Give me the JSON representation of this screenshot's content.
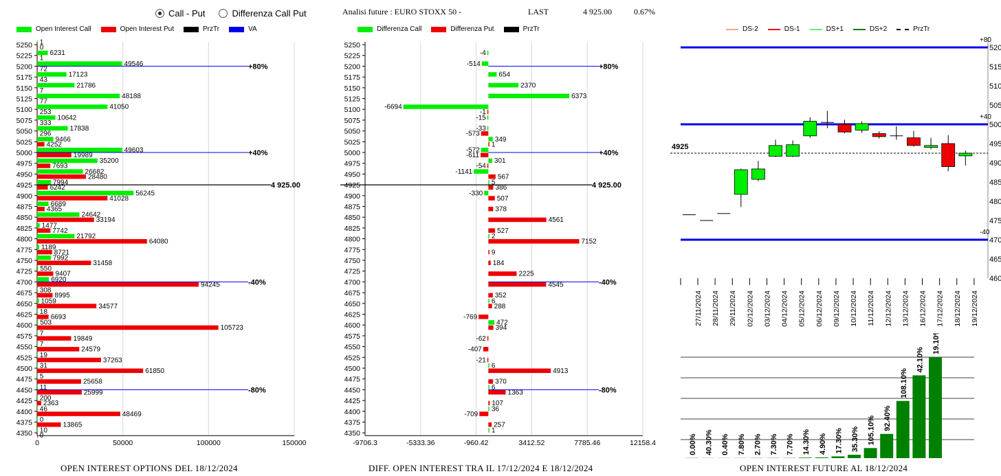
{
  "controls": {
    "radio_call_put": "Call - Put",
    "radio_diff": "Differenza Call Put",
    "selected": "call_put"
  },
  "header": {
    "analysis_label": "Analisi future : EURO STOXX 50 -",
    "last_label": "LAST",
    "last_value": "4 925.00",
    "change": "0.67%"
  },
  "colors": {
    "call": "#00ee00",
    "put": "#ee0000",
    "przTr": "#000000",
    "va": "#0000ee",
    "dark_green": "#008000"
  },
  "chart_data": [
    {
      "id": "oi",
      "type": "bar",
      "orientation": "horizontal",
      "title": "OPEN INTEREST OPTIONS DEL 18/12/2024",
      "legend": [
        "Open Interest Call",
        "Open Interest Put",
        "PrzTr",
        "VA"
      ],
      "xlim": [
        0,
        150000
      ],
      "xticks": [
        "0",
        "50000",
        "100000",
        "150000"
      ],
      "strikes": [
        "5250",
        "5225",
        "5200",
        "5175",
        "5150",
        "5125",
        "5100",
        "5075",
        "5050",
        "5025",
        "5000",
        "4975",
        "4950",
        "4925",
        "4900",
        "4875",
        "4850",
        "4825",
        "4800",
        "4775",
        "4750",
        "4725",
        "4700",
        "4675",
        "4650",
        "4625",
        "4600",
        "4575",
        "4550",
        "4525",
        "4500",
        "4475",
        "4450",
        "4425",
        "4400",
        "4375",
        "4350"
      ],
      "series": [
        {
          "name": "Open Interest Call",
          "values": [
            1,
            6231,
            49546,
            17123,
            21786,
            48188,
            41050,
            10642,
            17838,
            9466,
            49603,
            35200,
            26682,
            7994,
            56245,
            6689,
            24642,
            1477,
            21792,
            1189,
            7992,
            550,
            6920,
            308,
            1059,
            18,
            503,
            7,
            7,
            19,
            31,
            5,
            11,
            200,
            46,
            0,
            10
          ]
        },
        {
          "name": "Open Interest Put",
          "values": [
            0,
            1,
            72,
            43,
            7,
            77,
            253,
            333,
            296,
            4252,
            19989,
            7693,
            28480,
            6242,
            41028,
            4365,
            33194,
            7742,
            64080,
            8721,
            31458,
            9407,
            94245,
            8995,
            34577,
            6693,
            105723,
            19849,
            24579,
            37263,
            61850,
            25658,
            25999,
            2363,
            48469,
            13865,
            0
          ]
        }
      ],
      "przTr": {
        "strike": "4925",
        "label": "4 925.00"
      },
      "va_lines": [
        {
          "strike": "5200",
          "label": "+80%"
        },
        {
          "strike": "5000",
          "label": "+40%"
        },
        {
          "strike": "4700",
          "label": "-40%"
        },
        {
          "strike": "4450",
          "label": "-80%"
        }
      ]
    },
    {
      "id": "diff",
      "type": "bar",
      "orientation": "horizontal",
      "title": "DIFF. OPEN INTEREST TRA IL 17/12/2024 E 18/12/2024",
      "legend": [
        "Differenza Call",
        "Differenza Put",
        "PrzTr"
      ],
      "xlim": [
        -9706.3,
        12158.4
      ],
      "xticks": [
        "-9706.3",
        "-5333.36",
        "-960.42",
        "3412.52",
        "7785.46",
        "12158.4"
      ],
      "strikes": [
        "5250",
        "5225",
        "5200",
        "5175",
        "5150",
        "5125",
        "5100",
        "5075",
        "5050",
        "5025",
        "5000",
        "4975",
        "4950",
        "4925",
        "4900",
        "4875",
        "4850",
        "4825",
        "4800",
        "4775",
        "4750",
        "4725",
        "4700",
        "4675",
        "4650",
        "4625",
        "4600",
        "4575",
        "4550",
        "4525",
        "4500",
        "4475",
        "4450",
        "4425",
        "4400",
        "4375",
        "4350"
      ],
      "series": [
        {
          "name": "Differenza Call",
          "values": [
            null,
            -4,
            -514,
            654,
            2370,
            6373,
            -6694,
            -15,
            -33,
            349,
            -572,
            301,
            -1141,
            5,
            -330,
            null,
            null,
            null,
            2,
            null,
            null,
            null,
            null,
            null,
            6,
            null,
            472,
            null,
            null,
            null,
            6,
            null,
            6,
            null,
            36,
            null,
            1
          ]
        },
        {
          "name": "Differenza Put",
          "values": [
            null,
            null,
            null,
            null,
            null,
            null,
            -1,
            null,
            -573,
            1,
            -611,
            -54,
            567,
            386,
            507,
            378,
            4561,
            527,
            7152,
            9,
            184,
            2225,
            4545,
            352,
            288,
            -769,
            394,
            -62,
            -407,
            -21,
            4913,
            370,
            1363,
            107,
            -709,
            257,
            null
          ]
        }
      ],
      "przTr": {
        "strike": "4925",
        "label": "4 925.00"
      },
      "va_lines": [
        {
          "strike": "5200",
          "label": "+80%"
        },
        {
          "strike": "5000",
          "label": "+40%"
        },
        {
          "strike": "4700",
          "label": "-40%"
        },
        {
          "strike": "4450",
          "label": "-80%"
        }
      ]
    },
    {
      "id": "candles",
      "type": "candlestick",
      "legend": [
        "DS-2",
        "DS-1",
        "DS+1",
        "DS+2",
        "PrzTr"
      ],
      "ylim": [
        4600,
        5225
      ],
      "yticks": [
        4600,
        4650,
        4700,
        4750,
        4800,
        4850,
        4900,
        4950,
        5000,
        5050,
        5100,
        5150,
        5200
      ],
      "dates": [
        "27/11/2024",
        "28/11/2024",
        "29/11/2024",
        "02/12/2024",
        "03/12/2024",
        "04/12/2024",
        "05/12/2024",
        "06/12/2024",
        "09/12/2024",
        "10/12/2024",
        "11/12/2024",
        "12/12/2024",
        "13/12/2024",
        "16/12/2024",
        "17/12/2024",
        "18/12/2024",
        "19/12/2024"
      ],
      "candles": [
        {
          "open": 4765,
          "high": 4765,
          "low": 4765,
          "close": 4765
        },
        {
          "open": 4750,
          "high": 4750,
          "low": 4750,
          "close": 4750
        },
        {
          "open": 4768,
          "high": 4768,
          "low": 4768,
          "close": 4768
        },
        {
          "open": 4818,
          "high": 4885,
          "low": 4785,
          "close": 4882
        },
        {
          "open": 4857,
          "high": 4905,
          "low": 4852,
          "close": 4884
        },
        {
          "open": 4917,
          "high": 4960,
          "low": 4915,
          "close": 4945
        },
        {
          "open": 4917,
          "high": 4958,
          "low": 4915,
          "close": 4947
        },
        {
          "open": 4970,
          "high": 5018,
          "low": 4965,
          "close": 5008
        },
        {
          "open": 5005,
          "high": 5035,
          "low": 4990,
          "close": 5005
        },
        {
          "open": 5000,
          "high": 5012,
          "low": 4977,
          "close": 4980
        },
        {
          "open": 4985,
          "high": 5008,
          "low": 4978,
          "close": 5002
        },
        {
          "open": 4976,
          "high": 4982,
          "low": 4963,
          "close": 4968
        },
        {
          "open": 4970,
          "high": 4995,
          "low": 4960,
          "close": 4970
        },
        {
          "open": 4965,
          "high": 4983,
          "low": 4942,
          "close": 4945
        },
        {
          "open": 4940,
          "high": 4965,
          "low": 4935,
          "close": 4945
        },
        {
          "open": 4950,
          "high": 4972,
          "low": 4878,
          "close": 4890
        },
        {
          "open": 4918,
          "high": 4932,
          "low": 4893,
          "close": 4925
        }
      ],
      "levels": [
        {
          "value": 5200,
          "label": "+80"
        },
        {
          "value": 5000,
          "label": "+40"
        },
        {
          "value": 4700,
          "label": "-40"
        }
      ],
      "przTr": {
        "value": 4925,
        "label": "4925"
      }
    },
    {
      "id": "oi_future",
      "type": "bar",
      "title": "OPEN INTEREST FUTURE AL 18/12/2024",
      "labels": [
        "0.00%",
        "40.30%",
        "0.40%",
        "7.80%",
        "2.70%",
        "7.30%",
        "7.70%",
        "14.30%",
        "4.90%",
        "17.30%",
        "35.30%",
        "105.10%",
        "92.40%",
        "108.10%",
        "42.10%",
        "19.10%"
      ],
      "values": [
        0.3,
        0.2,
        0.2,
        0.2,
        0.3,
        0.3,
        0.3,
        0.8,
        1.0,
        2.6,
        5.0,
        15.0,
        36.0,
        85.0,
        123.0,
        150.0
      ],
      "ylim": [
        0,
        150
      ]
    }
  ]
}
